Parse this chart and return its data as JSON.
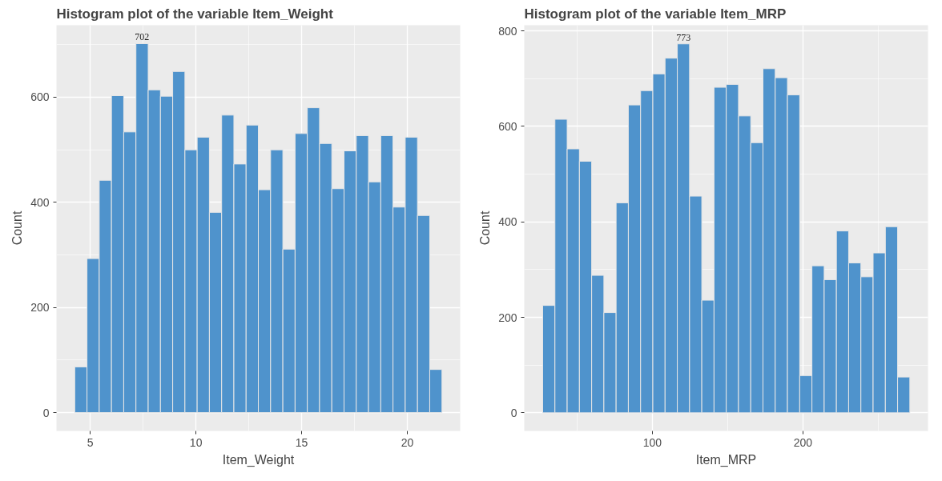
{
  "chart_data": [
    {
      "type": "histogram",
      "title": "Histogram plot of the variable Item_Weight",
      "xlabel": "Item_Weight",
      "ylabel": "Count",
      "color": "#4f93cc",
      "bins": [
        4.265,
        4.844,
        5.423,
        6.002,
        6.581,
        7.16,
        7.74,
        8.319,
        8.898,
        9.477,
        10.056,
        10.635,
        11.214,
        11.793,
        12.372,
        12.951,
        13.53,
        14.11,
        14.689,
        15.268,
        15.847,
        16.426,
        17.005,
        17.584,
        18.163,
        18.742,
        19.321,
        19.9,
        20.48,
        21.059,
        21.638
      ],
      "values": [
        87,
        293,
        442,
        603,
        534,
        702,
        614,
        602,
        649,
        500,
        524,
        381,
        566,
        473,
        547,
        424,
        500,
        311,
        531,
        580,
        512,
        426,
        498,
        527,
        439,
        527,
        391,
        524,
        375,
        82
      ],
      "value_labels": [
        null,
        null,
        null,
        null,
        null,
        "702",
        null,
        null,
        null,
        null,
        null,
        null,
        null,
        null,
        null,
        null,
        null,
        null,
        null,
        null,
        null,
        null,
        null,
        null,
        null,
        null,
        null,
        null,
        null,
        null
      ],
      "xlim": [
        3.4,
        22.5
      ],
      "xticks": [
        5,
        10,
        15,
        20
      ],
      "ylim": [
        -35,
        737
      ],
      "yticks": [
        0,
        200,
        400,
        600
      ],
      "grid": true
    },
    {
      "type": "histogram",
      "title": "Histogram plot of the variable Item_MRP",
      "xlabel": "Item_MRP",
      "ylabel": "Count",
      "color": "#4f93cc",
      "bins": [
        27.23,
        35.35,
        43.48,
        51.6,
        59.73,
        67.85,
        75.97,
        84.1,
        92.22,
        100.35,
        108.47,
        116.6,
        124.72,
        132.84,
        140.97,
        149.09,
        157.22,
        165.34,
        173.46,
        181.59,
        189.71,
        197.84,
        205.96,
        214.09,
        222.21,
        230.33,
        238.46,
        246.58,
        254.71,
        262.83,
        270.95
      ],
      "values": [
        225,
        615,
        553,
        527,
        288,
        210,
        440,
        645,
        675,
        710,
        743,
        773,
        454,
        236,
        682,
        688,
        622,
        566,
        721,
        702,
        666,
        78,
        308,
        279,
        381,
        314,
        285,
        335,
        390,
        75
      ],
      "value_labels": [
        null,
        null,
        null,
        null,
        null,
        null,
        null,
        null,
        null,
        null,
        null,
        "773",
        null,
        null,
        null,
        null,
        null,
        null,
        null,
        null,
        null,
        null,
        null,
        null,
        null,
        null,
        null,
        null,
        null,
        null
      ],
      "xlim": [
        15,
        283
      ],
      "xticks": [
        100,
        200
      ],
      "ylim": [
        -38,
        812
      ],
      "yticks": [
        0,
        200,
        400,
        600,
        800
      ],
      "grid": true
    }
  ]
}
